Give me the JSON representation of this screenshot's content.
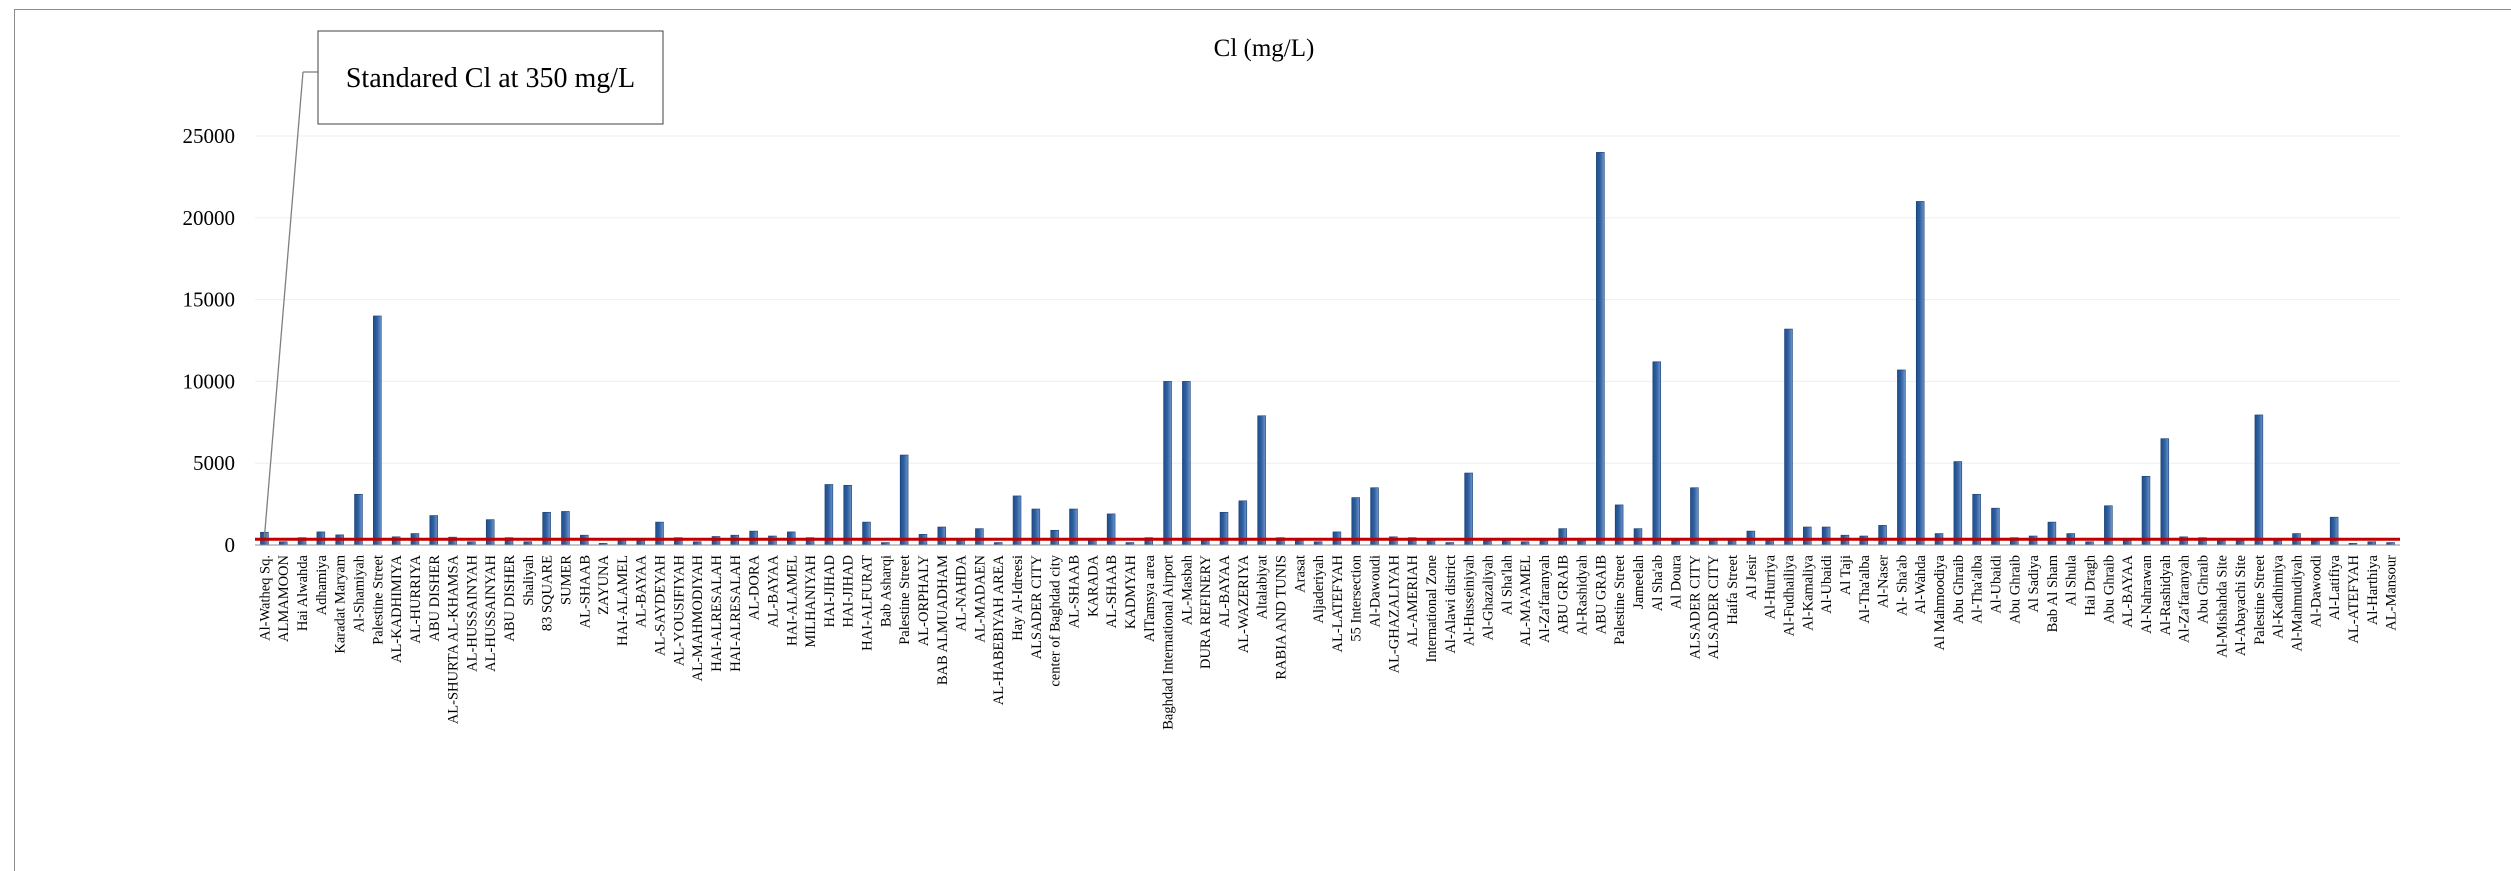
{
  "chart_data": {
    "type": "bar",
    "title": "Cl (mg/L)",
    "xlabel": "",
    "ylabel": "",
    "ylim": [
      0,
      25000
    ],
    "yticks": [
      0,
      5000,
      10000,
      15000,
      20000,
      25000
    ],
    "grid": true,
    "bar_color": "#2e5f9e",
    "standard_line": {
      "value": 350,
      "color": "#c00000"
    },
    "annotation": "Standared Cl at 350 mg/L",
    "categories": [
      "Al-Watheq Sq.",
      "ALMAMOON",
      "Hai Alwahda",
      "Adhamiya",
      "Karadat Maryam",
      "Al-Shamiyah",
      "Palestine Street",
      "AL-KADHIMIYA",
      "AL-HURRIYA",
      "ABU DISHER",
      "AL-SHURTA AL-KHAMSA",
      "AL-HUSSAINYAH",
      "AL-HUSSAINYAH",
      "ABU DISHER",
      "Shaliyah",
      "83 SQUARE",
      "SUMER",
      "AL-SHAAB",
      "ZAYUNA",
      "HAI-ALAMEL",
      "AL-BAYAA",
      "AL-SAYDEYAH",
      "AL-YOUSIFIYAH",
      "AL-MAHMODIYAH",
      "HAI-ALRESALAH",
      "HAI-ALRESALAH",
      "AL-DORA",
      "AL-BAYAA",
      "HAI-ALAMEL",
      "MILHANIYAH",
      "HAI-JIHAD",
      "HAI-JIHAD",
      "HAI-ALFURAT",
      "Bab Asharqi",
      "Palestine Street",
      "AL-ORPHALY",
      "BAB ALMUADHAM",
      "AL-NAHDA",
      "AL-MADAEN",
      "AL-HABEBIYAH AREA",
      "Hay Al-Idreesi",
      "ALSADER CITY",
      "center of Baghdad city",
      "AL-SHAAB",
      "KARADA",
      "AL-SHAAB",
      "KADMYAH",
      "AlTamsya area",
      "Baghdad International Airport",
      "AL-Masbah",
      "DURA REFINERY",
      "AL-BAYAA",
      "AL-WAZERIYA",
      "Altalabiyat",
      "RABIA AND TUNIS",
      "Arasat",
      "Aljaderiyah",
      "AL-LATEFYAH",
      "55 Intersection",
      "Al-Dawoudi",
      "AL-GHAZALIYAH",
      "AL-AMERIAH",
      "International Zone",
      "Al-Alawi district",
      "Al-Husseiniyah",
      "Al-Ghazaliyah",
      "Al Sha'lah",
      "AL-MA'AMEL",
      "Al-Za'faranyah",
      "ABU GRAIB",
      "Al-Rashidyah",
      "ABU GRAIB",
      "Palestine Street",
      "Jameelah",
      "Al Sha'ab",
      "Al Doura",
      "ALSADER CITY",
      "ALSADER CITY",
      "Haifa Street",
      "Al Jesir",
      "Al-Hurriya",
      "Al-Fudhailiya",
      "Al-Kamaliya",
      "Al-Ubaidi",
      "Al Taji",
      "Al-Tha'alba",
      "Al-Naser",
      "Al- Sha'ab",
      "Al-Wahda",
      "Al Mahmoodiya",
      "Abu Ghraib",
      "Al-Tha'alba",
      "Al-Ubaidi",
      "Abu Ghraib",
      "Al Sadiya",
      "Bab Al Sham",
      "Al Shula",
      "Hai Dragh",
      "Abu Ghraib",
      "AL-BAYAA",
      "Al-Nahrawan",
      "Al-Rashidyah",
      "Al-Za'faranyah",
      "Abu Ghraib",
      "Al-Mishahda Site",
      "Al-Abayachi Site",
      "Palestine Street",
      "Al-Kadhimiya",
      "Al-Mahmudiyah",
      "Al-Dawoodi",
      "Al-Latifiya",
      "AL-ATEFYAH",
      "Al-Harthiya",
      "AL-Mansour"
    ],
    "values": [
      780,
      200,
      450,
      800,
      620,
      3100,
      14000,
      500,
      700,
      1800,
      480,
      200,
      1550,
      450,
      200,
      2000,
      2050,
      600,
      100,
      350,
      400,
      1400,
      450,
      200,
      520,
      600,
      850,
      550,
      800,
      450,
      3700,
      3650,
      1400,
      150,
      5500,
      650,
      1100,
      300,
      1000,
      150,
      3000,
      2200,
      900,
      2200,
      300,
      1900,
      150,
      450,
      10000,
      10000,
      400,
      2000,
      2700,
      7900,
      450,
      350,
      200,
      800,
      2900,
      3500,
      500,
      450,
      400,
      150,
      4400,
      250,
      400,
      200,
      300,
      1000,
      250,
      24000,
      2450,
      1000,
      11200,
      250,
      3500,
      300,
      300,
      850,
      300,
      13200,
      1100,
      1100,
      600,
      550,
      1200,
      10700,
      21000,
      700,
      5100,
      3100,
      2250,
      450,
      550,
      1400,
      700,
      200,
      2400,
      300,
      4200,
      6500,
      500,
      450,
      250,
      250,
      7950,
      300,
      700,
      250,
      1700,
      100,
      200,
      150
    ]
  }
}
